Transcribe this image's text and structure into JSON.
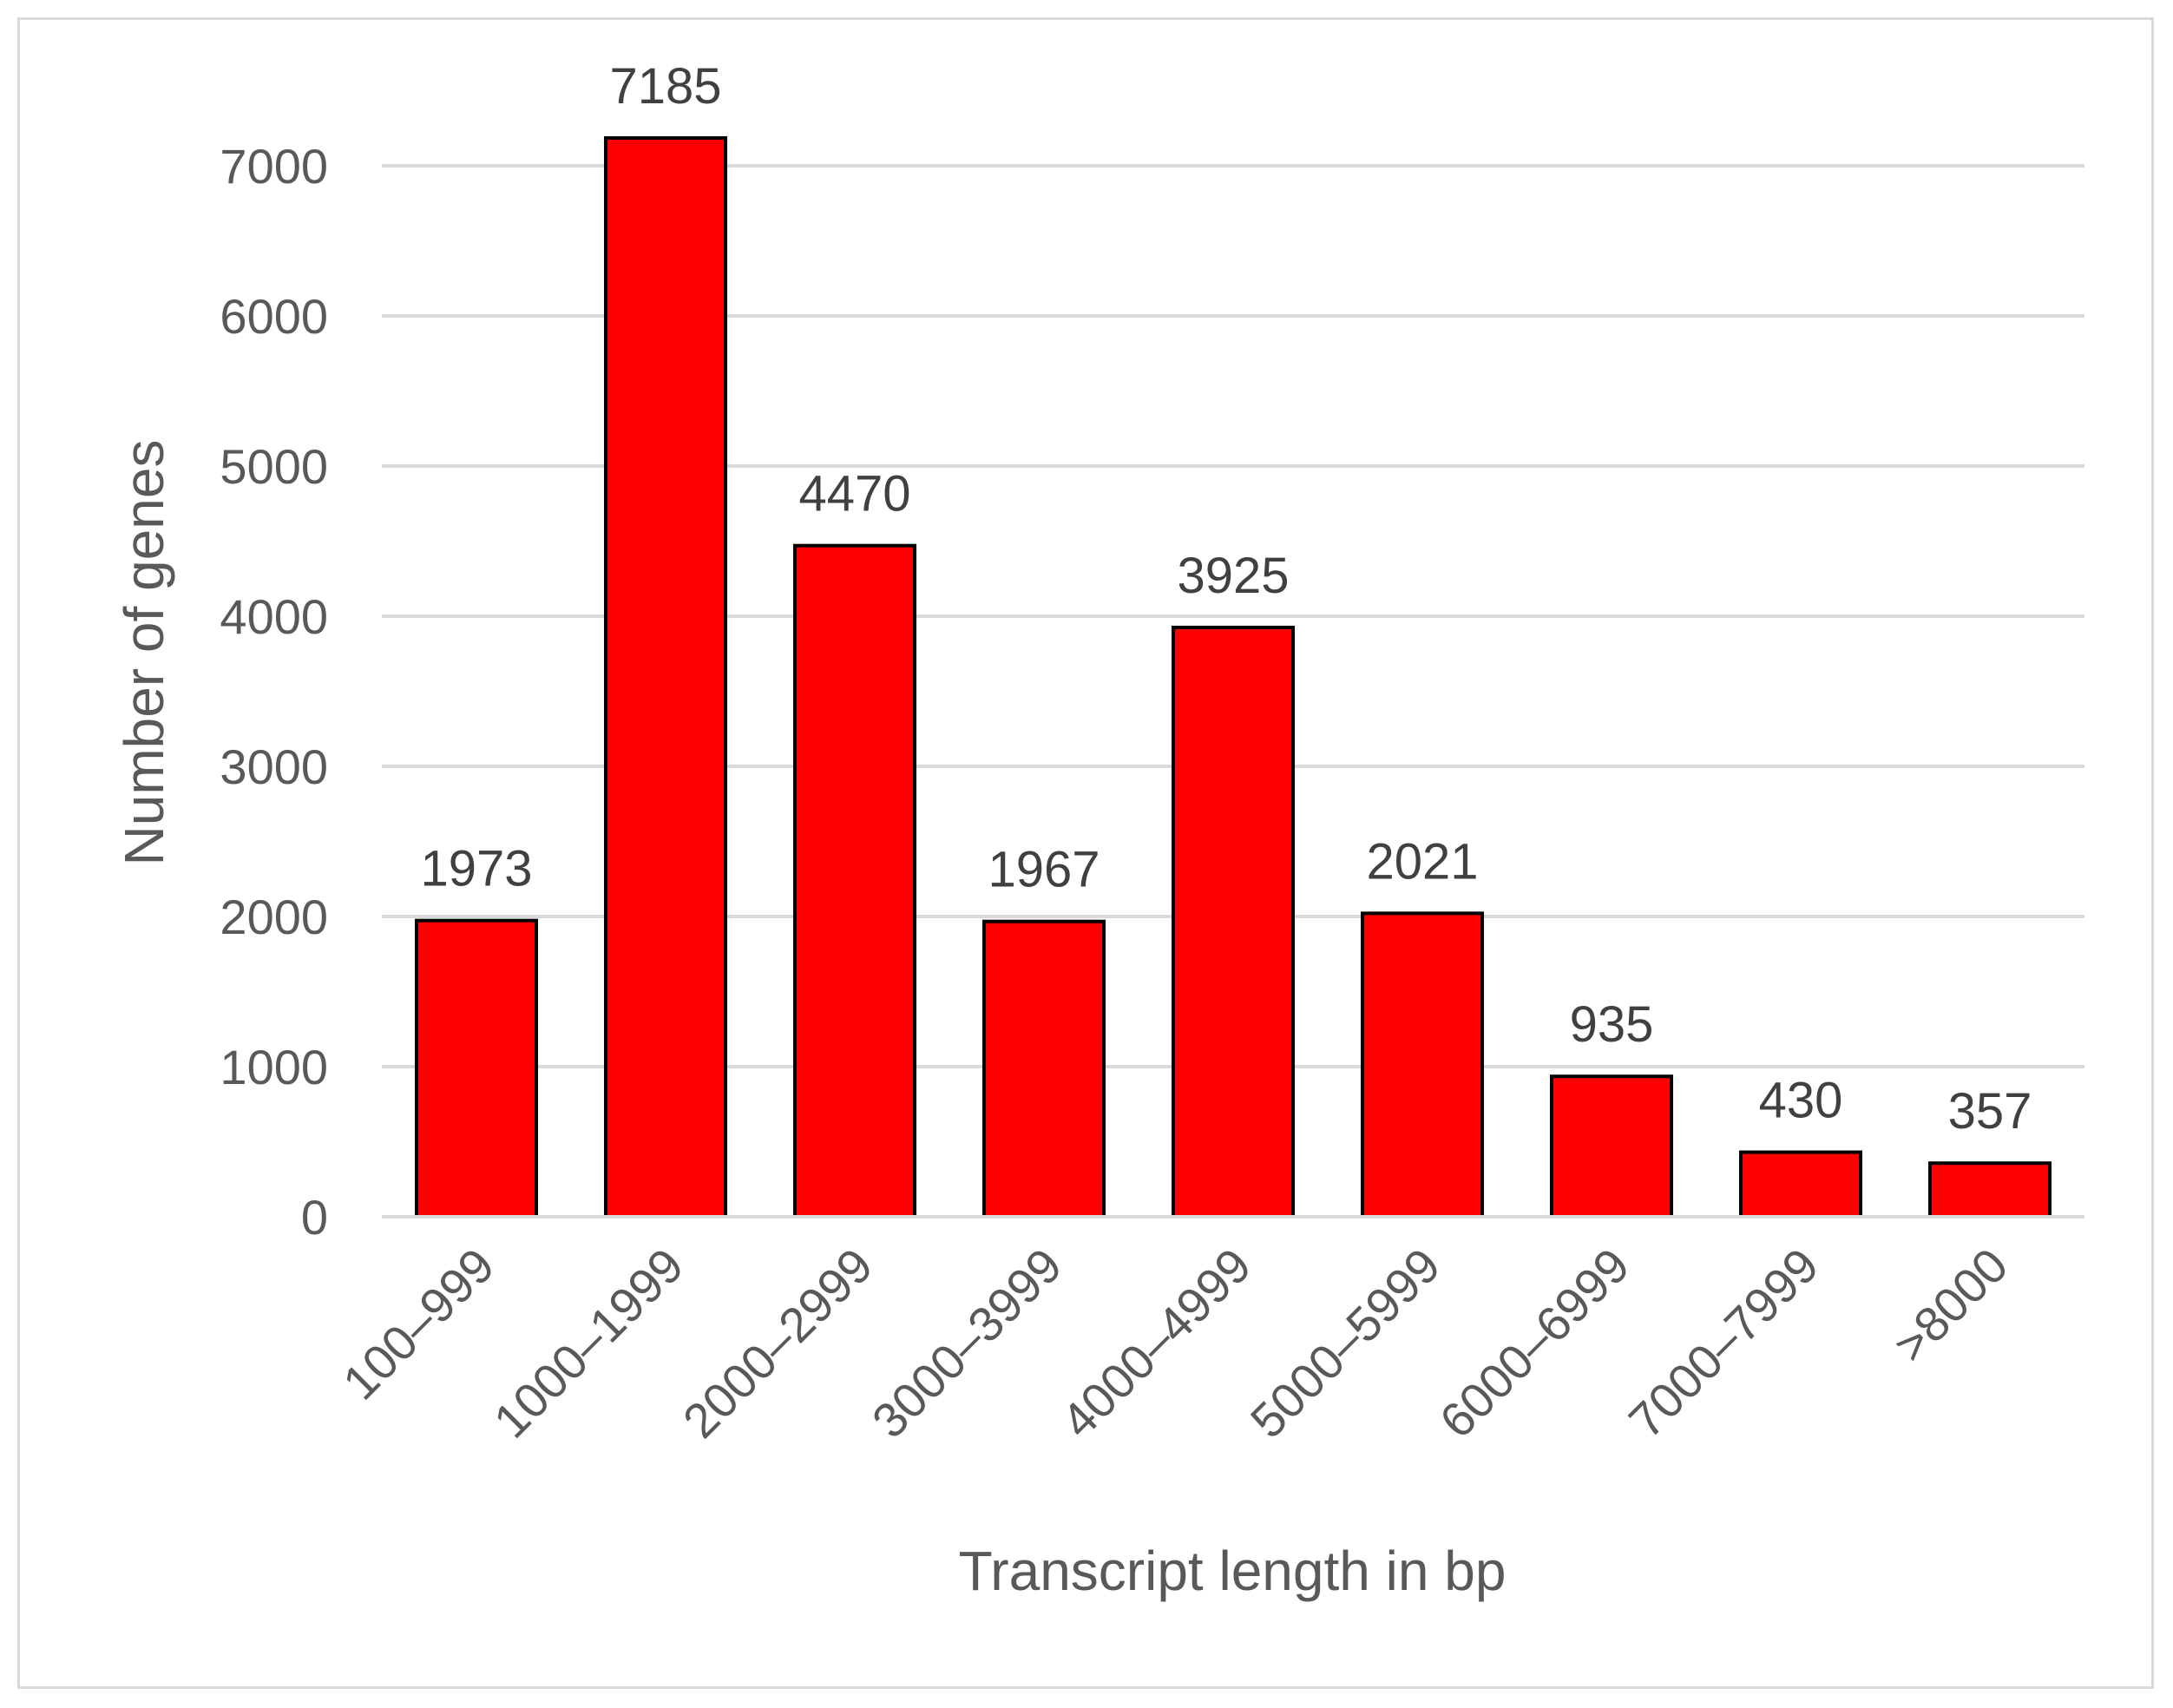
{
  "chart_data": {
    "type": "bar",
    "title": "",
    "xlabel": "Transcript length in bp",
    "ylabel": "Number of genes",
    "categories": [
      "100–999",
      "1000–1999",
      "2000–2999",
      "3000–3999",
      "4000–4999",
      "5000–5999",
      "6000–6999",
      "7000–7999",
      ">8000"
    ],
    "series": [
      {
        "values": [
          1973,
          7185,
          4470,
          1967,
          3925,
          2021,
          935,
          430,
          357
        ],
        "color": "#ff0000"
      }
    ],
    "data_labels": [
      "1973",
      "7185",
      "4470",
      "1967",
      "3925",
      "2021",
      "935",
      "430",
      "357"
    ],
    "ylim": [
      0,
      7000
    ],
    "yticks": [
      0,
      1000,
      2000,
      3000,
      4000,
      5000,
      6000,
      7000
    ],
    "ytick_labels": [
      "0",
      "1000",
      "2000",
      "3000",
      "4000",
      "5000",
      "6000",
      "7000"
    ],
    "grid": true,
    "legend": "none",
    "bar_edge_color": "#000000",
    "gridline_color": "#d9d9d9"
  }
}
